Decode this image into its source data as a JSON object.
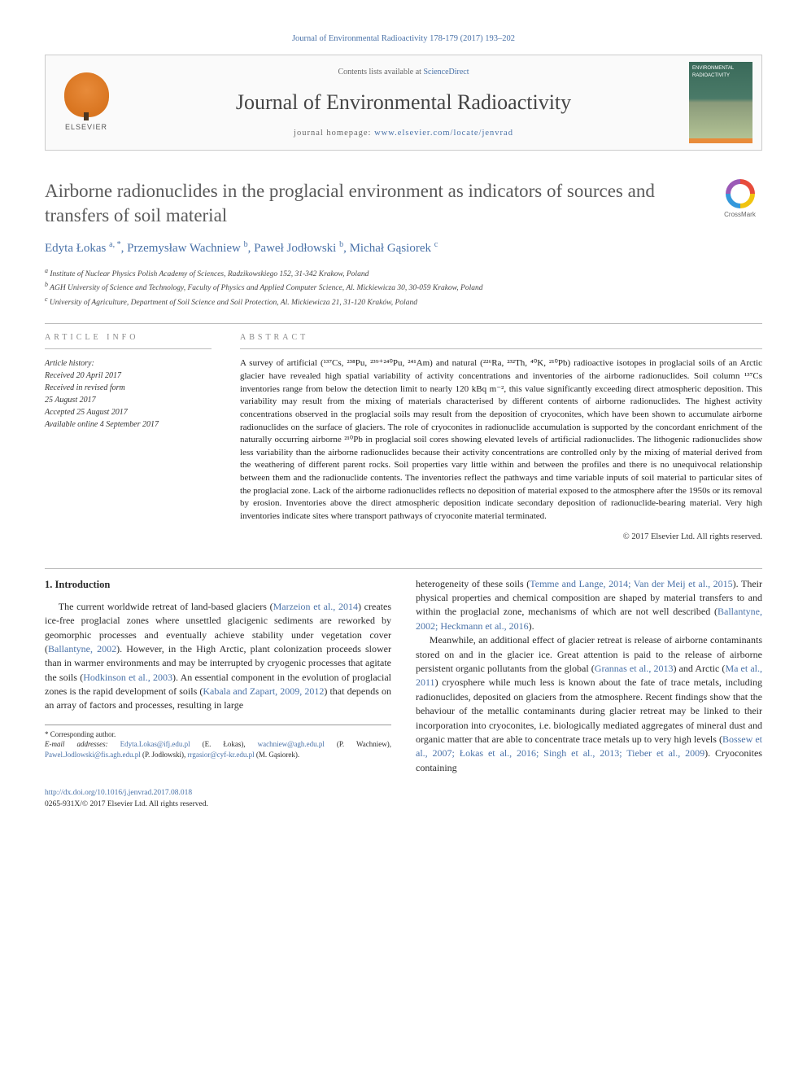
{
  "citation_line": "Journal of Environmental Radioactivity 178-179 (2017) 193–202",
  "masthead": {
    "contents_prefix": "Contents lists available at ",
    "contents_link": "ScienceDirect",
    "journal_name": "Journal of Environmental Radioactivity",
    "homepage_prefix": "journal homepage: ",
    "homepage_link": "www.elsevier.com/locate/jenvrad",
    "publisher": "ELSEVIER",
    "cover_text": "ENVIRONMENTAL RADIOACTIVITY"
  },
  "crossmark_label": "CrossMark",
  "title": "Airborne radionuclides in the proglacial environment as indicators of sources and transfers of soil material",
  "authors_html": "Edyta Łokas <sup>a, *</sup>, Przemysław Wachniew <sup>b</sup>, Paweł Jodłowski <sup>b</sup>, Michał Gąsiorek <sup>c</sup>",
  "affiliations": [
    "a Institute of Nuclear Physics Polish Academy of Sciences, Radzikowskiego 152, 31-342 Krakow, Poland",
    "b AGH University of Science and Technology, Faculty of Physics and Applied Computer Science, Al. Mickiewicza 30, 30-059 Krakow, Poland",
    "c University of Agriculture, Department of Soil Science and Soil Protection, Al. Mickiewicza 21, 31-120 Kraków, Poland"
  ],
  "info_label": "ARTICLE INFO",
  "abstract_label": "ABSTRACT",
  "history": {
    "head": "Article history:",
    "lines": [
      "Received 20 April 2017",
      "Received in revised form",
      "25 August 2017",
      "Accepted 25 August 2017",
      "Available online 4 September 2017"
    ]
  },
  "abstract": "A survey of artificial (¹³⁷Cs, ²³⁸Pu, ²³⁹⁺²⁴⁰Pu, ²⁴¹Am) and natural (²²⁶Ra, ²³²Th, ⁴⁰K, ²¹⁰Pb) radioactive isotopes in proglacial soils of an Arctic glacier have revealed high spatial variability of activity concentrations and inventories of the airborne radionuclides. Soil column ¹³⁷Cs inventories range from below the detection limit to nearly 120 kBq m⁻², this value significantly exceeding direct atmospheric deposition. This variability may result from the mixing of materials characterised by different contents of airborne radionuclides. The highest activity concentrations observed in the proglacial soils may result from the deposition of cryoconites, which have been shown to accumulate airborne radionuclides on the surface of glaciers. The role of cryoconites in radionuclide accumulation is supported by the concordant enrichment of the naturally occurring airborne ²¹⁰Pb in proglacial soil cores showing elevated levels of artificial radionuclides. The lithogenic radionuclides show less variability than the airborne radionuclides because their activity concentrations are controlled only by the mixing of material derived from the weathering of different parent rocks. Soil properties vary little within and between the profiles and there is no unequivocal relationship between them and the radionuclide contents. The inventories reflect the pathways and time variable inputs of soil material to particular sites of the proglacial zone. Lack of the airborne radionuclides reflects no deposition of material exposed to the atmosphere after the 1950s or its removal by erosion. Inventories above the direct atmospheric deposition indicate secondary deposition of radionuclide-bearing material. Very high inventories indicate sites where transport pathways of cryoconite material terminated.",
  "copyright": "© 2017 Elsevier Ltd. All rights reserved.",
  "section1_heading": "1. Introduction",
  "para_left": "The current worldwide retreat of land-based glaciers (<a class='cite' href='#'>Marzeion et al., 2014</a>) creates ice-free proglacial zones where unsettled glacigenic sediments are reworked by geomorphic processes and eventually achieve stability under vegetation cover (<a class='cite' href='#'>Ballantyne, 2002</a>). However, in the High Arctic, plant colonization proceeds slower than in warmer environments and may be interrupted by cryogenic processes that agitate the soils (<a class='cite' href='#'>Hodkinson et al., 2003</a>). An essential component in the evolution of proglacial zones is the rapid development of soils (<a class='cite' href='#'>Kabala and Zapart, 2009, 2012</a>) that depends on an array of factors and processes, resulting in large",
  "para_right_1": "heterogeneity of these soils (<a class='cite' href='#'>Temme and Lange, 2014; Van der Meij et al., 2015</a>). Their physical properties and chemical composition are shaped by material transfers to and within the proglacial zone, mechanisms of which are not well described (<a class='cite' href='#'>Ballantyne, 2002; Heckmann et al., 2016</a>).",
  "para_right_2": "Meanwhile, an additional effect of glacier retreat is release of airborne contaminants stored on and in the glacier ice. Great attention is paid to the release of airborne persistent organic pollutants from the global (<a class='cite' href='#'>Grannas et al., 2013</a>) and Arctic (<a class='cite' href='#'>Ma et al., 2011</a>) cryosphere while much less is known about the fate of trace metals, including radionuclides, deposited on glaciers from the atmosphere. Recent findings show that the behaviour of the metallic contaminants during glacier retreat may be linked to their incorporation into cryoconites, i.e. biologically mediated aggregates of mineral dust and organic matter that are able to concentrate trace metals up to very high levels (<a class='cite' href='#'>Bossew et al., 2007; Łokas et al., 2016; Singh et al., 2013; Tieber et al., 2009</a>). Cryoconites containing",
  "footnotes": {
    "corr": "* Corresponding author.",
    "emails_label": "E-mail addresses: ",
    "emails": "Edyta.Lokas@ifj.edu.pl (E. Łokas), wachniew@agh.edu.pl (P. Wachniew), Pawel.Jodlowski@fis.agh.edu.pl (P. Jodłowski), rrgasior@cyf-kr.edu.pl (M. Gąsiorek)."
  },
  "doi": "http://dx.doi.org/10.1016/j.jenvrad.2017.08.018",
  "issn_line": "0265-931X/© 2017 Elsevier Ltd. All rights reserved.",
  "colors": {
    "link": "#4a72a8",
    "text": "#2a2a2a",
    "elsevier_orange": "#e88b3a"
  }
}
